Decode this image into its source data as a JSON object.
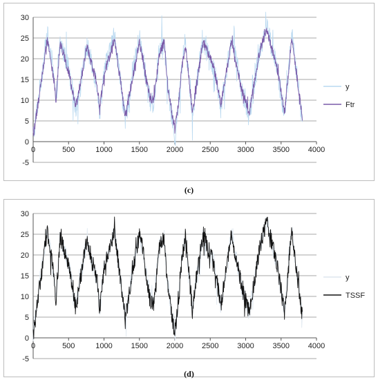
{
  "chart_data": [
    {
      "type": "line",
      "panel_label": "(c)",
      "x_ticks": [
        0,
        500,
        1000,
        1500,
        2000,
        2500,
        3000,
        3500,
        4000
      ],
      "y_ticks": [
        -5,
        0,
        5,
        10,
        15,
        20,
        25,
        30
      ],
      "xlim": [
        0,
        4000
      ],
      "ylim": [
        -5,
        30
      ],
      "grid": "horizontal",
      "legend_position": "right",
      "x": [
        0,
        200,
        300,
        320,
        380,
        500,
        600,
        760,
        900,
        940,
        1000,
        1150,
        1300,
        1400,
        1500,
        1550,
        1650,
        1700,
        1780,
        1850,
        1900,
        2000,
        2050,
        2100,
        2150,
        2250,
        2300,
        2400,
        2550,
        2650,
        2800,
        2950,
        3050,
        3200,
        3300,
        3450,
        3550,
        3650,
        3800
      ],
      "series": [
        {
          "name": "y",
          "color": "#b8d8f0",
          "noise": 2.6,
          "values": [
            1,
            26,
            14,
            9,
            24,
            18,
            8,
            23,
            14,
            7,
            17,
            26,
            5,
            16,
            25,
            20,
            10,
            9,
            22,
            24,
            13,
            1,
            8,
            19,
            24,
            6,
            14,
            24,
            18,
            8,
            25,
            12,
            6,
            22,
            28,
            17,
            6,
            26,
            5
          ]
        },
        {
          "name": "Ftr",
          "color": "#7a5aa8",
          "noise": 1.1,
          "values": [
            1,
            25,
            14,
            9,
            24,
            17,
            8,
            23,
            14,
            8,
            16,
            25,
            6,
            15,
            24,
            20,
            10,
            10,
            21,
            24,
            13,
            3,
            9,
            18,
            23,
            7,
            13,
            24,
            18,
            9,
            24,
            12,
            7,
            22,
            27,
            17,
            7,
            25,
            6
          ]
        }
      ]
    },
    {
      "type": "line",
      "panel_label": "(d)",
      "x_ticks": [
        0,
        500,
        1000,
        1500,
        2000,
        2500,
        3000,
        3500,
        4000
      ],
      "y_ticks": [
        -5,
        0,
        5,
        10,
        15,
        20,
        25,
        30
      ],
      "xlim": [
        0,
        4000
      ],
      "ylim": [
        -5,
        30
      ],
      "grid": "horizontal",
      "legend_position": "right",
      "x": [
        0,
        200,
        300,
        320,
        380,
        500,
        600,
        760,
        900,
        940,
        1000,
        1150,
        1300,
        1400,
        1500,
        1550,
        1650,
        1700,
        1780,
        1850,
        1900,
        2000,
        2050,
        2100,
        2150,
        2250,
        2300,
        2400,
        2550,
        2650,
        2800,
        2950,
        3050,
        3200,
        3300,
        3450,
        3550,
        3650,
        3800
      ],
      "series": [
        {
          "name": "y",
          "color": "#dde6ee",
          "noise": 2.2,
          "values": [
            1,
            26,
            14,
            9,
            24,
            18,
            8,
            23,
            14,
            7,
            17,
            26,
            5,
            16,
            25,
            20,
            10,
            9,
            22,
            24,
            13,
            1,
            8,
            19,
            24,
            6,
            14,
            24,
            18,
            8,
            25,
            12,
            6,
            22,
            28,
            17,
            6,
            26,
            5
          ]
        },
        {
          "name": "TSSF",
          "color": "#111111",
          "noise": 2.0,
          "values": [
            1,
            26,
            14,
            9,
            24,
            18,
            7,
            24,
            14,
            7,
            17,
            26,
            4,
            16,
            25,
            21,
            9,
            8,
            22,
            24,
            12,
            1,
            8,
            19,
            25,
            6,
            14,
            25,
            18,
            8,
            25,
            12,
            6,
            22,
            28,
            17,
            6,
            26,
            5
          ]
        }
      ]
    }
  ],
  "captions": [
    "(c)",
    "(d)"
  ]
}
